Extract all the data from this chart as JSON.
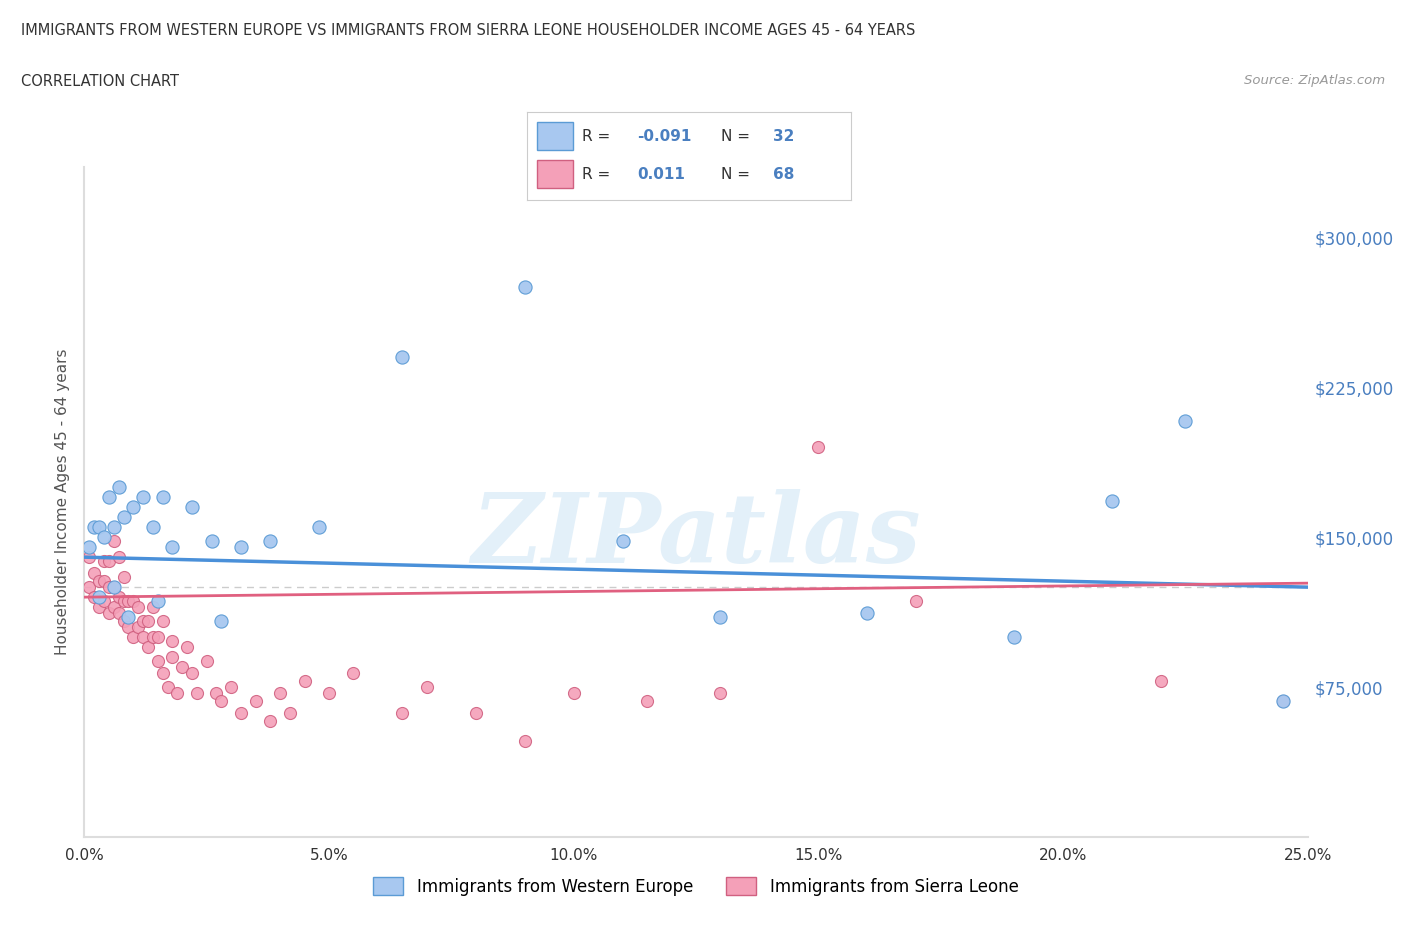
{
  "title_line1": "IMMIGRANTS FROM WESTERN EUROPE VS IMMIGRANTS FROM SIERRA LEONE HOUSEHOLDER INCOME AGES 45 - 64 YEARS",
  "title_line2": "CORRELATION CHART",
  "source_text": "Source: ZipAtlas.com",
  "ylabel": "Householder Income Ages 45 - 64 years",
  "watermark": "ZIPatlas",
  "legend_label_blue": "Immigrants from Western Europe",
  "legend_label_pink": "Immigrants from Sierra Leone",
  "blue_color": "#a8c8f0",
  "pink_color": "#f4a0b8",
  "blue_line_color": "#4a90d9",
  "pink_line_color": "#e06080",
  "blue_edge_color": "#5b9bd5",
  "pink_edge_color": "#d06080",
  "axis_color": "#dddddd",
  "dashed_line_color": "#cccccc",
  "background_color": "#ffffff",
  "text_color_blue": "#4a7fc0",
  "text_color_dark": "#333333",
  "text_color_source": "#999999",
  "xlim": [
    0.0,
    0.25
  ],
  "ylim": [
    0,
    335000
  ],
  "ytick_positions": [
    75000,
    150000,
    225000,
    300000
  ],
  "ytick_labels": [
    "$75,000",
    "$150,000",
    "$225,000",
    "$300,000"
  ],
  "xtick_positions": [
    0.0,
    0.05,
    0.1,
    0.15,
    0.2,
    0.25
  ],
  "xtick_labels": [
    "0.0%",
    "5.0%",
    "10.0%",
    "15.0%",
    "20.0%",
    "25.0%"
  ],
  "dashed_line_y": 125000,
  "blue_x": [
    0.001,
    0.002,
    0.003,
    0.004,
    0.005,
    0.006,
    0.007,
    0.008,
    0.01,
    0.012,
    0.014,
    0.016,
    0.018,
    0.022,
    0.026,
    0.032,
    0.038,
    0.048,
    0.065,
    0.09,
    0.11,
    0.13,
    0.16,
    0.19,
    0.21,
    0.225,
    0.245,
    0.003,
    0.006,
    0.009,
    0.015,
    0.028
  ],
  "blue_y": [
    145000,
    155000,
    155000,
    150000,
    170000,
    155000,
    175000,
    160000,
    165000,
    170000,
    155000,
    170000,
    145000,
    165000,
    148000,
    145000,
    148000,
    155000,
    240000,
    275000,
    148000,
    110000,
    112000,
    100000,
    168000,
    208000,
    68000,
    120000,
    125000,
    110000,
    118000,
    108000
  ],
  "pink_x": [
    0.001,
    0.001,
    0.002,
    0.002,
    0.003,
    0.003,
    0.004,
    0.004,
    0.004,
    0.005,
    0.005,
    0.005,
    0.006,
    0.006,
    0.006,
    0.007,
    0.007,
    0.007,
    0.008,
    0.008,
    0.008,
    0.009,
    0.009,
    0.01,
    0.01,
    0.011,
    0.011,
    0.012,
    0.012,
    0.013,
    0.013,
    0.014,
    0.014,
    0.015,
    0.015,
    0.016,
    0.016,
    0.017,
    0.018,
    0.018,
    0.019,
    0.02,
    0.021,
    0.022,
    0.023,
    0.025,
    0.027,
    0.028,
    0.03,
    0.032,
    0.035,
    0.038,
    0.04,
    0.042,
    0.045,
    0.05,
    0.055,
    0.065,
    0.07,
    0.08,
    0.09,
    0.1,
    0.115,
    0.13,
    0.15,
    0.17,
    0.22,
    0.245
  ],
  "pink_y": [
    125000,
    140000,
    120000,
    132000,
    115000,
    128000,
    118000,
    128000,
    138000,
    112000,
    125000,
    138000,
    115000,
    125000,
    148000,
    112000,
    120000,
    140000,
    108000,
    118000,
    130000,
    105000,
    118000,
    100000,
    118000,
    105000,
    115000,
    100000,
    108000,
    95000,
    108000,
    100000,
    115000,
    88000,
    100000,
    82000,
    108000,
    75000,
    90000,
    98000,
    72000,
    85000,
    95000,
    82000,
    72000,
    88000,
    72000,
    68000,
    75000,
    62000,
    68000,
    58000,
    72000,
    62000,
    78000,
    72000,
    82000,
    62000,
    75000,
    62000,
    48000,
    72000,
    68000,
    72000,
    195000,
    118000,
    78000,
    68000
  ]
}
